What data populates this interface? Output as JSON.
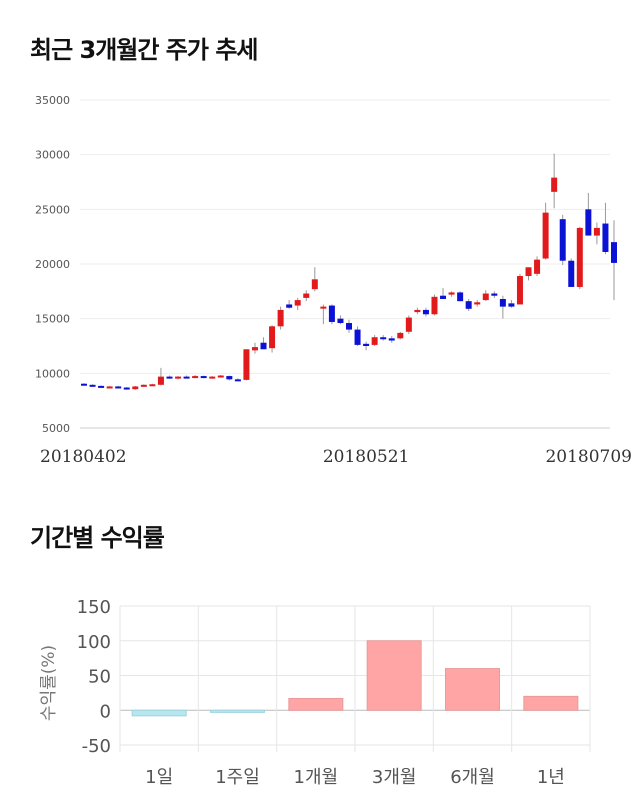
{
  "sections": {
    "price_title": "최근 3개월간 주가 추세",
    "returns_title": "기간별 수익률"
  },
  "chart_data": [
    {
      "type": "candlestick",
      "title": "최근 3개월간 주가 추세",
      "ylim": [
        5000,
        35000
      ],
      "yticks": [
        "35000",
        "30000",
        "25000",
        "20000",
        "15000",
        "10000",
        "5000"
      ],
      "x_labels": [
        "20180402",
        "20180521",
        "20180709"
      ],
      "x_label_index": [
        0,
        33,
        66
      ],
      "candles": [
        [
          9050,
          9100,
          8900,
          8950
        ],
        [
          8950,
          9000,
          8800,
          8850
        ],
        [
          8850,
          8900,
          8700,
          8750
        ],
        [
          8750,
          8850,
          8700,
          8800
        ],
        [
          8800,
          8850,
          8650,
          8700
        ],
        [
          8700,
          8750,
          8500,
          8550
        ],
        [
          8550,
          8850,
          8500,
          8800
        ],
        [
          8800,
          9000,
          8750,
          8950
        ],
        [
          8950,
          9050,
          8850,
          9000
        ],
        [
          8950,
          10500,
          8900,
          9700
        ],
        [
          9700,
          9800,
          9500,
          9550
        ],
        [
          9550,
          9750,
          9450,
          9700
        ],
        [
          9700,
          9800,
          9550,
          9600
        ],
        [
          9600,
          9850,
          9550,
          9750
        ],
        [
          9750,
          9800,
          9550,
          9600
        ],
        [
          9600,
          9750,
          9500,
          9700
        ],
        [
          9700,
          9850,
          9600,
          9800
        ],
        [
          9750,
          9800,
          9350,
          9450
        ],
        [
          9450,
          9550,
          9300,
          9400
        ],
        [
          9400,
          12200,
          9350,
          12200
        ],
        [
          12100,
          12800,
          11800,
          12400
        ],
        [
          12800,
          13300,
          12300,
          12200
        ],
        [
          12300,
          14400,
          11900,
          14300
        ],
        [
          14300,
          16100,
          14000,
          15800
        ],
        [
          16300,
          16700,
          15900,
          16000
        ],
        [
          16200,
          16900,
          15800,
          16700
        ],
        [
          16900,
          17600,
          16600,
          17300
        ],
        [
          17700,
          19700,
          17500,
          18600
        ],
        [
          16100,
          16300,
          14500,
          16100
        ],
        [
          16200,
          16300,
          14500,
          14700
        ],
        [
          15000,
          15300,
          14500,
          14600
        ],
        [
          14600,
          14900,
          13700,
          14000
        ],
        [
          14000,
          14300,
          12500,
          12600
        ],
        [
          12700,
          12900,
          12100,
          12500
        ],
        [
          12600,
          13500,
          12500,
          13300
        ],
        [
          13300,
          13500,
          13000,
          13200
        ],
        [
          13200,
          13400,
          12800,
          13000
        ],
        [
          13200,
          13800,
          13100,
          13700
        ],
        [
          13800,
          15300,
          13600,
          15100
        ],
        [
          15600,
          16000,
          15400,
          15800
        ],
        [
          15800,
          16000,
          15200,
          15400
        ],
        [
          15400,
          17200,
          15300,
          17000
        ],
        [
          17100,
          17800,
          16800,
          16800
        ],
        [
          17200,
          17500,
          17000,
          17400
        ],
        [
          17400,
          17500,
          16600,
          16600
        ],
        [
          16600,
          16800,
          15700,
          15900
        ],
        [
          16300,
          16700,
          16100,
          16500
        ],
        [
          16700,
          17600,
          16600,
          17300
        ],
        [
          17300,
          17500,
          16900,
          17100
        ],
        [
          16800,
          17100,
          15000,
          16100
        ],
        [
          16400,
          16700,
          16000,
          16100
        ],
        [
          16300,
          19100,
          16300,
          18900
        ],
        [
          18900,
          19700,
          18500,
          19700
        ],
        [
          19100,
          20700,
          18900,
          20400
        ],
        [
          20500,
          25600,
          20400,
          24700
        ],
        [
          26600,
          30100,
          25100,
          27900
        ],
        [
          24100,
          24500,
          19900,
          20300
        ],
        [
          20300,
          20500,
          17900,
          17900
        ],
        [
          17900,
          23400,
          17700,
          23300
        ],
        [
          25000,
          26500,
          22700,
          22600
        ],
        [
          22600,
          23800,
          21800,
          23300
        ],
        [
          23700,
          25600,
          20900,
          21100
        ],
        [
          22000,
          24000,
          16700,
          20100
        ]
      ],
      "up_color": "#e31a1c",
      "down_color": "#0b12d6"
    },
    {
      "type": "bar",
      "title": "기간별 수익률",
      "categories": [
        "1일",
        "1주일",
        "1개월",
        "3개월",
        "6개월",
        "1년"
      ],
      "values": [
        -8,
        -3,
        17,
        100,
        60,
        20
      ],
      "ylabel": "수익률(%)",
      "ylim": [
        -60,
        150
      ],
      "yticks": [
        150,
        100,
        50,
        0,
        -50
      ],
      "positive_color": "#ffa5a5",
      "negative_color": "#b7e6ef"
    }
  ]
}
